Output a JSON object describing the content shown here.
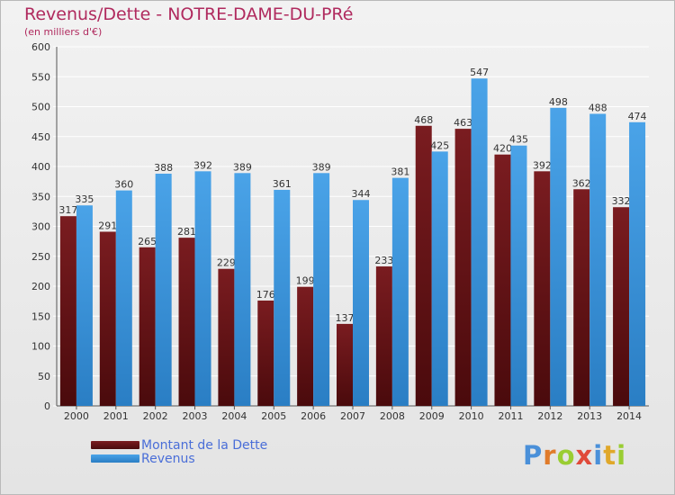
{
  "title": "Revenus/Dette - NOTRE-DAME-DU-PRé",
  "subtitle": "(en milliers d'€)",
  "logo": {
    "letters": [
      "P",
      "r",
      "o",
      "x",
      "i",
      "t",
      "i"
    ],
    "colors": [
      "#4a90d9",
      "#e07b2a",
      "#9acd32",
      "#e04a3a",
      "#4a90d9",
      "#e0a82a",
      "#9acd32"
    ]
  },
  "colors": {
    "debt": "#7a1c20",
    "debt_dark": "#4a0a0c",
    "revenue": "#4aa3e8",
    "revenue_dark": "#2a7ec4",
    "title": "#b02a5e",
    "legend_text": "#4a6ed8"
  },
  "legend": [
    {
      "label": "Montant de la Dette",
      "series": "debt"
    },
    {
      "label": "Revenus",
      "series": "revenue"
    }
  ],
  "chart_data": {
    "type": "bar",
    "title": "Revenus/Dette - NOTRE-DAME-DU-PRé",
    "subtitle": "(en milliers d'€)",
    "categories": [
      "2000",
      "2001",
      "2002",
      "2003",
      "2004",
      "2005",
      "2006",
      "2007",
      "2008",
      "2009",
      "2010",
      "2011",
      "2012",
      "2013",
      "2014"
    ],
    "series": [
      {
        "name": "Montant de la Dette",
        "values": [
          317,
          291,
          265,
          281,
          229,
          176,
          199,
          137,
          233,
          468,
          463,
          420,
          392,
          362,
          332
        ]
      },
      {
        "name": "Revenus",
        "values": [
          335,
          360,
          388,
          392,
          389,
          361,
          389,
          344,
          381,
          425,
          547,
          435,
          498,
          488,
          474
        ]
      }
    ],
    "ylim": [
      0,
      600
    ],
    "yticks": [
      0,
      50,
      100,
      150,
      200,
      250,
      300,
      350,
      400,
      450,
      500,
      550,
      600
    ],
    "grid": true,
    "legend_position": "bottom-left"
  }
}
